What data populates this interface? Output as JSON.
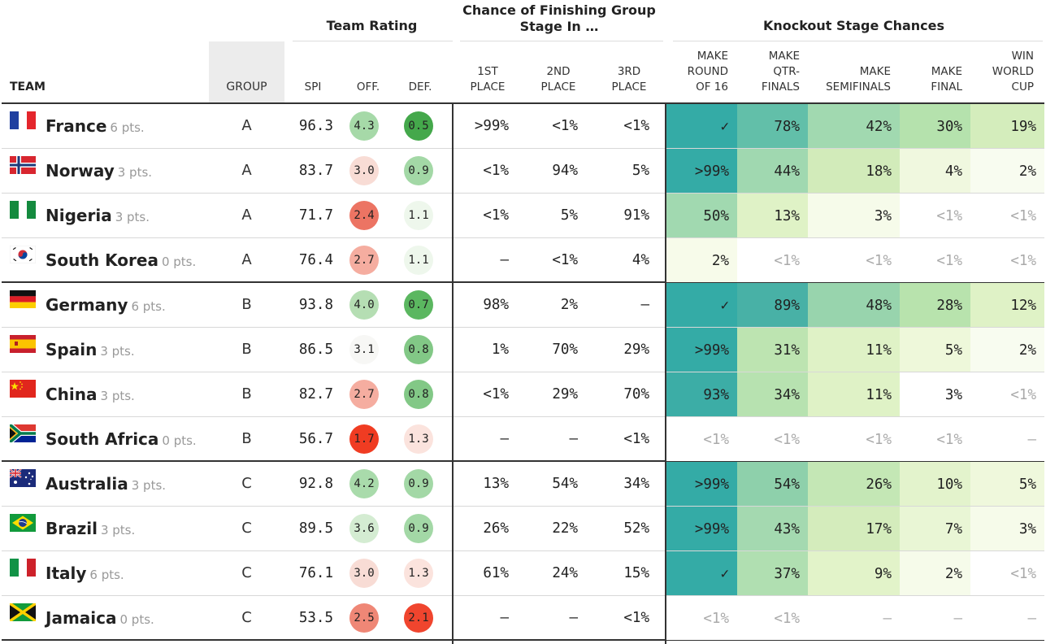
{
  "header": {
    "team_rating": "Team Rating",
    "chance_line1": "Chance of Finishing Group",
    "chance_line2": "Stage In …",
    "knockout": "Knockout Stage Chances",
    "cols": {
      "team": "TEAM",
      "group": "GROUP",
      "spi": "SPI",
      "off": "OFF.",
      "def": "DEF.",
      "p1": [
        "1ST",
        "PLACE"
      ],
      "p2": [
        "2ND",
        "PLACE"
      ],
      "p3": [
        "3RD",
        "PLACE"
      ],
      "r16": [
        "MAKE",
        "ROUND",
        "OF 16"
      ],
      "qf": [
        "MAKE",
        "QTR-",
        "FINALS"
      ],
      "sf": [
        "MAKE",
        "SEMIFINALS"
      ],
      "fin": [
        "MAKE",
        "FINAL"
      ],
      "win": [
        "WIN",
        "WORLD",
        "CUP"
      ]
    }
  },
  "colors": {
    "teal_dark": "#34aba6",
    "teal": "#5dbcaa",
    "green_light": "#cdebbd",
    "red": "#f0452e",
    "off_green": "#7fcf8a",
    "def_green": "#3fae4a"
  },
  "teams": [
    {
      "flag": "france-flag",
      "name": "France",
      "pts": "6 pts.",
      "group": "A",
      "spi": "96.3",
      "off": "4.3",
      "def": "0.5",
      "p1": ">99%",
      "p2": "<1%",
      "p3": "<1%",
      "r16": "✓",
      "qf": "78%",
      "sf": "42%",
      "fin": "30%",
      "win": "19%",
      "offc": "#a6d9a8",
      "defc": "#44a84b",
      "r16c": "#34aba6",
      "qfc": "#62bfa9",
      "sfc": "#a1d9b0",
      "finc": "#b5e2ad",
      "winc": "#d4edbc"
    },
    {
      "flag": "norway-flag",
      "name": "Norway",
      "pts": "3 pts.",
      "group": "A",
      "spi": "83.7",
      "off": "3.0",
      "def": "0.9",
      "p1": "<1%",
      "p2": "94%",
      "p3": "5%",
      "r16": ">99%",
      "qf": "44%",
      "sf": "18%",
      "fin": "4%",
      "win": "2%",
      "offc": "#f8dcd5",
      "defc": "#a3d8a6",
      "r16c": "#34aba6",
      "qfc": "#a0d8b0",
      "sfc": "#d2ebba",
      "finc": "#f0f8df",
      "winc": "#f8fcf0"
    },
    {
      "flag": "nigeria-flag",
      "name": "Nigeria",
      "pts": "3 pts.",
      "group": "A",
      "spi": "71.7",
      "off": "2.4",
      "def": "1.1",
      "p1": "<1%",
      "p2": "5%",
      "p3": "91%",
      "r16": "50%",
      "qf": "13%",
      "sf": "3%",
      "fin": "<1%",
      "win": "<1%",
      "offc": "#ec7463",
      "defc": "#eef7ec",
      "r16c": "#a1d9b0",
      "qfc": "#dff2c6",
      "sfc": "#f6fbea",
      "finc": "#ffffff",
      "winc": "#ffffff"
    },
    {
      "flag": "southkorea-flag",
      "name": "South Korea",
      "pts": "0 pts.",
      "group": "A",
      "spi": "76.4",
      "off": "2.7",
      "def": "1.1",
      "p1": "–",
      "p2": "<1%",
      "p3": "4%",
      "r16": "2%",
      "qf": "<1%",
      "sf": "<1%",
      "fin": "<1%",
      "win": "<1%",
      "offc": "#f5ada0",
      "defc": "#eef7ec",
      "r16c": "#f7fbea",
      "qfc": "#ffffff",
      "sfc": "#ffffff",
      "finc": "#ffffff",
      "winc": "#ffffff"
    },
    {
      "flag": "germany-flag",
      "name": "Germany",
      "pts": "6 pts.",
      "group": "B",
      "spi": "93.8",
      "off": "4.0",
      "def": "0.7",
      "p1": "98%",
      "p2": "2%",
      "p3": "–",
      "r16": "✓",
      "qf": "89%",
      "sf": "48%",
      "fin": "28%",
      "win": "12%",
      "offc": "#b5deb3",
      "defc": "#5bb760",
      "r16c": "#34aba6",
      "qfc": "#48b1a6",
      "sfc": "#98d4ad",
      "finc": "#b8e3ad",
      "winc": "#dff2c6"
    },
    {
      "flag": "spain-flag",
      "name": "Spain",
      "pts": "3 pts.",
      "group": "B",
      "spi": "86.5",
      "off": "3.1",
      "def": "0.8",
      "p1": "1%",
      "p2": "70%",
      "p3": "29%",
      "r16": ">99%",
      "qf": "31%",
      "sf": "11%",
      "fin": "5%",
      "win": "2%",
      "offc": "#f7f7f5",
      "defc": "#82c886",
      "r16c": "#34aba6",
      "qfc": "#bde4b1",
      "sfc": "#dff2c6",
      "finc": "#eef8da",
      "winc": "#f8fcf0"
    },
    {
      "flag": "china-flag",
      "name": "China",
      "pts": "3 pts.",
      "group": "B",
      "spi": "82.7",
      "off": "2.7",
      "def": "0.8",
      "p1": "<1%",
      "p2": "29%",
      "p3": "70%",
      "r16": "93%",
      "qf": "34%",
      "sf": "11%",
      "fin": "3%",
      "win": "<1%",
      "offc": "#f5ada0",
      "defc": "#82c886",
      "r16c": "#3cada6",
      "qfc": "#b7e2b0",
      "sfc": "#dff2c6",
      "finc": "#f3faе4",
      "winc": "#ffffff"
    },
    {
      "flag": "southafrica-flag",
      "name": "South Africa",
      "pts": "0 pts.",
      "group": "B",
      "spi": "56.7",
      "off": "1.7",
      "def": "1.3",
      "p1": "–",
      "p2": "–",
      "p3": "<1%",
      "r16": "<1%",
      "qf": "<1%",
      "sf": "<1%",
      "fin": "<1%",
      "win": "–",
      "offc": "#f03c22",
      "defc": "#fbe3dd",
      "r16c": "#ffffff",
      "qfc": "#ffffff",
      "sfc": "#ffffff",
      "finc": "#ffffff",
      "winc": "#ffffff"
    },
    {
      "flag": "australia-flag",
      "name": "Australia",
      "pts": "3 pts.",
      "group": "C",
      "spi": "92.8",
      "off": "4.2",
      "def": "0.9",
      "p1": "13%",
      "p2": "54%",
      "p3": "34%",
      "r16": ">99%",
      "qf": "54%",
      "sf": "26%",
      "fin": "10%",
      "win": "5%",
      "offc": "#a9dbab",
      "defc": "#a3d8a6",
      "r16c": "#34aba6",
      "qfc": "#8ed0ab",
      "sfc": "#c4e7b5",
      "finc": "#e3f3cc",
      "winc": "#eff8dc"
    },
    {
      "flag": "brazil-flag",
      "name": "Brazil",
      "pts": "3 pts.",
      "group": "C",
      "spi": "89.5",
      "off": "3.6",
      "def": "0.9",
      "p1": "26%",
      "p2": "22%",
      "p3": "52%",
      "r16": ">99%",
      "qf": "43%",
      "sf": "17%",
      "fin": "7%",
      "win": "3%",
      "offc": "#d4ecd2",
      "defc": "#a3d8a6",
      "r16c": "#34aba6",
      "qfc": "#a4d9b0",
      "sfc": "#d4ecbc",
      "finc": "#e9f6d5",
      "winc": "#f6fbea"
    },
    {
      "flag": "italy-flag",
      "name": "Italy",
      "pts": "6 pts.",
      "group": "C",
      "spi": "76.1",
      "off": "3.0",
      "def": "1.3",
      "p1": "61%",
      "p2": "24%",
      "p3": "15%",
      "r16": "✓",
      "qf": "37%",
      "sf": "9%",
      "fin": "2%",
      "win": "<1%",
      "offc": "#f8dcd5",
      "defc": "#fbe3dd",
      "r16c": "#34aba6",
      "qfc": "#b0dfb1",
      "sfc": "#e2f3c9",
      "finc": "#f6fbea",
      "winc": "#ffffff"
    },
    {
      "flag": "jamaica-flag",
      "name": "Jamaica",
      "pts": "0 pts.",
      "group": "C",
      "spi": "53.5",
      "off": "2.5",
      "def": "2.1",
      "p1": "–",
      "p2": "–",
      "p3": "<1%",
      "r16": "<1%",
      "qf": "<1%",
      "sf": "–",
      "fin": "–",
      "win": "–",
      "offc": "#ef8776",
      "defc": "#f0452e",
      "r16c": "#ffffff",
      "qfc": "#ffffff",
      "sfc": "#ffffff",
      "finc": "#ffffff",
      "winc": "#ffffff"
    }
  ]
}
